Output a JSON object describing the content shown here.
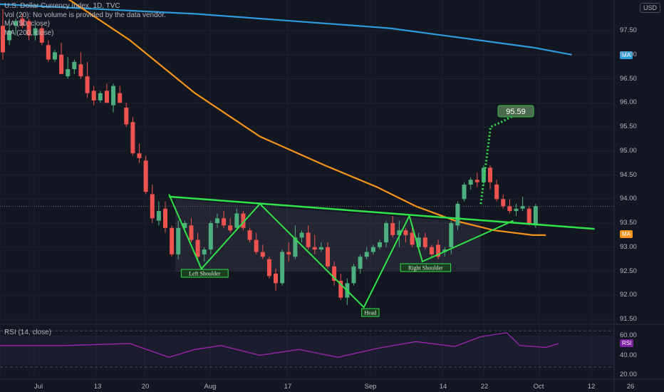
{
  "legend": {
    "title": "U.S. Dollar Currency Index, 1D, TVC",
    "vol": "Vol (20): No volume is provided by the data vendor.",
    "ma50": "MA (50, close)",
    "ma200": "MA (200, close)"
  },
  "currency": "USD",
  "rsi_label": "RSI (14, close)",
  "badges": {
    "ma200": "MA",
    "ma50": "MA",
    "rsi": "RSI",
    "target": "95.59"
  },
  "annotations": {
    "left_shoulder": "Left Shoulder",
    "head": "Head",
    "right_shoulder": "Right Shoulder"
  },
  "price_ticks": [
    "97.50",
    "97.00",
    "96.50",
    "96.00",
    "95.50",
    "95.00",
    "94.50",
    "94.00",
    "93.50",
    "93.00",
    "92.50",
    "92.00",
    "91.50"
  ],
  "rsi_ticks": [
    "60.00",
    "40.00",
    "20.00"
  ],
  "x_ticks": [
    "Jul",
    "13",
    "20",
    "Aug",
    "17",
    "Sep",
    "14",
    "22",
    "Oct",
    "12",
    "26"
  ],
  "colors": {
    "up": "#4caf7d",
    "down": "#ef5350",
    "ma50": "#f7931a",
    "ma200": "#2d9cdb",
    "pattern": "#31e34a",
    "rsi": "#9c27b0"
  },
  "chart_data": {
    "type": "candlestick",
    "symbol": "DXY",
    "candles": [
      {
        "d": "Jun 29",
        "o": 97.6,
        "h": 97.95,
        "l": 96.9,
        "c": 97.05
      },
      {
        "d": "Jun 30",
        "o": 97.3,
        "h": 97.75,
        "l": 97.2,
        "c": 97.5
      },
      {
        "d": "Jul 1",
        "o": 97.6,
        "h": 97.75,
        "l": 97.4,
        "c": 97.7
      },
      {
        "d": "Jul 2",
        "o": 97.75,
        "h": 97.85,
        "l": 97.55,
        "c": 97.6
      },
      {
        "d": "Jul 6",
        "o": 97.7,
        "h": 97.75,
        "l": 97.3,
        "c": 97.4
      },
      {
        "d": "Jul 7",
        "o": 97.4,
        "h": 97.6,
        "l": 97.3,
        "c": 97.55
      },
      {
        "d": "Jul 8",
        "o": 97.55,
        "h": 97.6,
        "l": 97.2,
        "c": 97.25
      },
      {
        "d": "Jul 9",
        "o": 97.2,
        "h": 97.3,
        "l": 96.85,
        "c": 96.9
      },
      {
        "d": "Jul 10",
        "o": 96.9,
        "h": 97.1,
        "l": 96.85,
        "c": 97.05
      },
      {
        "d": "Jul 13",
        "o": 97.0,
        "h": 97.25,
        "l": 96.6,
        "c": 96.6
      },
      {
        "d": "Jul 14",
        "o": 96.55,
        "h": 96.95,
        "l": 96.5,
        "c": 96.7
      },
      {
        "d": "Jul 15",
        "o": 96.7,
        "h": 96.9,
        "l": 96.6,
        "c": 96.85
      },
      {
        "d": "Jul 16",
        "o": 96.8,
        "h": 97.05,
        "l": 96.5,
        "c": 96.55
      },
      {
        "d": "Jul 17",
        "o": 96.55,
        "h": 96.85,
        "l": 96.1,
        "c": 96.2
      },
      {
        "d": "Jul 20",
        "o": 96.25,
        "h": 96.35,
        "l": 95.95,
        "c": 96.05
      },
      {
        "d": "Jul 21",
        "o": 96.05,
        "h": 96.25,
        "l": 96.0,
        "c": 96.2
      },
      {
        "d": "Jul 22",
        "o": 96.25,
        "h": 96.4,
        "l": 96.0,
        "c": 96.0
      },
      {
        "d": "Jul 23",
        "o": 95.95,
        "h": 96.4,
        "l": 95.8,
        "c": 96.35
      },
      {
        "d": "Jul 24",
        "o": 96.2,
        "h": 96.35,
        "l": 96.0,
        "c": 96.0
      },
      {
        "d": "Jul 27",
        "o": 95.9,
        "h": 96.0,
        "l": 95.5,
        "c": 95.55
      },
      {
        "d": "Jul 28",
        "o": 95.6,
        "h": 95.7,
        "l": 94.9,
        "c": 94.95
      },
      {
        "d": "Jul 29",
        "o": 94.95,
        "h": 95.15,
        "l": 94.75,
        "c": 94.85
      },
      {
        "d": "Jul 30",
        "o": 94.8,
        "h": 94.9,
        "l": 94.1,
        "c": 94.15
      },
      {
        "d": "Jul 31",
        "o": 94.1,
        "h": 94.3,
        "l": 93.5,
        "c": 93.6
      },
      {
        "d": "Aug 3",
        "o": 93.55,
        "h": 93.95,
        "l": 93.45,
        "c": 93.75
      },
      {
        "d": "Aug 4",
        "o": 93.8,
        "h": 93.95,
        "l": 93.3,
        "c": 93.4
      },
      {
        "d": "Aug 5",
        "o": 93.4,
        "h": 93.45,
        "l": 92.8,
        "c": 92.85
      },
      {
        "d": "Aug 6",
        "o": 92.85,
        "h": 93.55,
        "l": 92.75,
        "c": 93.4
      },
      {
        "d": "Aug 7",
        "o": 93.4,
        "h": 93.55,
        "l": 93.3,
        "c": 93.5
      },
      {
        "d": "Aug 10",
        "o": 93.45,
        "h": 93.6,
        "l": 93.1,
        "c": 93.15
      },
      {
        "d": "Aug 11",
        "o": 93.15,
        "h": 93.3,
        "l": 92.75,
        "c": 92.8
      },
      {
        "d": "Aug 12",
        "o": 92.85,
        "h": 93.0,
        "l": 92.7,
        "c": 92.95
      },
      {
        "d": "Aug 13",
        "o": 92.95,
        "h": 93.55,
        "l": 92.85,
        "c": 93.5
      },
      {
        "d": "Aug 14",
        "o": 93.5,
        "h": 93.7,
        "l": 93.4,
        "c": 93.6
      },
      {
        "d": "Aug 17",
        "o": 93.6,
        "h": 93.75,
        "l": 93.4,
        "c": 93.45
      },
      {
        "d": "Aug 18",
        "o": 93.45,
        "h": 93.6,
        "l": 93.3,
        "c": 93.35
      },
      {
        "d": "Aug 19",
        "o": 93.4,
        "h": 93.8,
        "l": 93.35,
        "c": 93.7
      },
      {
        "d": "Aug 20",
        "o": 93.7,
        "h": 93.75,
        "l": 93.35,
        "c": 93.4
      },
      {
        "d": "Aug 21",
        "o": 93.35,
        "h": 93.4,
        "l": 93.1,
        "c": 93.15
      },
      {
        "d": "Aug 24",
        "o": 93.15,
        "h": 93.3,
        "l": 92.85,
        "c": 92.9
      },
      {
        "d": "Aug 25",
        "o": 92.9,
        "h": 93.05,
        "l": 92.75,
        "c": 92.8
      },
      {
        "d": "Aug 26",
        "o": 92.75,
        "h": 92.8,
        "l": 92.35,
        "c": 92.4
      },
      {
        "d": "Aug 27",
        "o": 92.45,
        "h": 92.55,
        "l": 92.1,
        "c": 92.25
      },
      {
        "d": "Aug 28",
        "o": 92.25,
        "h": 92.95,
        "l": 92.2,
        "c": 92.9
      },
      {
        "d": "Aug 31",
        "o": 92.9,
        "h": 93.1,
        "l": 92.7,
        "c": 92.85
      },
      {
        "d": "Sep 1",
        "o": 92.8,
        "h": 93.45,
        "l": 92.75,
        "c": 93.2
      },
      {
        "d": "Sep 2",
        "o": 93.2,
        "h": 93.35,
        "l": 93.1,
        "c": 93.3
      },
      {
        "d": "Sep 3",
        "o": 93.3,
        "h": 93.45,
        "l": 92.95,
        "c": 93.0
      },
      {
        "d": "Sep 4",
        "o": 93.0,
        "h": 93.25,
        "l": 92.85,
        "c": 92.95
      },
      {
        "d": "Sep 7",
        "o": 92.95,
        "h": 93.1,
        "l": 92.9,
        "c": 93.0
      },
      {
        "d": "Sep 8",
        "o": 93.0,
        "h": 93.1,
        "l": 92.55,
        "c": 92.6
      },
      {
        "d": "Sep 9",
        "o": 92.6,
        "h": 92.7,
        "l": 92.2,
        "c": 92.3
      },
      {
        "d": "Sep 10",
        "o": 92.3,
        "h": 92.45,
        "l": 91.9,
        "c": 91.95
      },
      {
        "d": "Sep 11",
        "o": 91.95,
        "h": 92.35,
        "l": 91.8,
        "c": 92.25
      },
      {
        "d": "Sep 14",
        "o": 92.25,
        "h": 92.65,
        "l": 92.2,
        "c": 92.6
      },
      {
        "d": "Sep 15",
        "o": 92.55,
        "h": 92.85,
        "l": 92.45,
        "c": 92.8
      },
      {
        "d": "Sep 16",
        "o": 92.8,
        "h": 93.0,
        "l": 92.75,
        "c": 92.9
      },
      {
        "d": "Sep 17",
        "o": 92.9,
        "h": 93.05,
        "l": 92.85,
        "c": 93.0
      },
      {
        "d": "Sep 18",
        "o": 93.0,
        "h": 93.15,
        "l": 92.95,
        "c": 93.1
      },
      {
        "d": "Sep 21",
        "o": 93.1,
        "h": 93.55,
        "l": 93.0,
        "c": 93.5
      },
      {
        "d": "Sep 22",
        "o": 93.5,
        "h": 93.65,
        "l": 93.2,
        "c": 93.25
      },
      {
        "d": "Sep 23",
        "o": 93.25,
        "h": 93.55,
        "l": 93.0,
        "c": 93.35
      },
      {
        "d": "Sep 24",
        "o": 93.35,
        "h": 93.4,
        "l": 93.1,
        "c": 93.25
      },
      {
        "d": "Sep 25",
        "o": 93.3,
        "h": 93.4,
        "l": 93.0,
        "c": 93.05
      },
      {
        "d": "Sep 28",
        "o": 93.0,
        "h": 93.3,
        "l": 92.95,
        "c": 93.2
      },
      {
        "d": "Sep 29",
        "o": 93.2,
        "h": 93.3,
        "l": 92.95,
        "c": 93.0
      },
      {
        "d": "Sep 30",
        "o": 93.0,
        "h": 93.05,
        "l": 92.8,
        "c": 92.85
      },
      {
        "d": "Oct 1",
        "o": 93.05,
        "h": 93.15,
        "l": 92.75,
        "c": 92.8
      },
      {
        "d": "Oct 2",
        "o": 92.9,
        "h": 93.0,
        "l": 92.8,
        "c": 92.95
      },
      {
        "d": "Oct 5",
        "o": 93.0,
        "h": 93.55,
        "l": 92.85,
        "c": 93.5
      },
      {
        "d": "Oct 6",
        "o": 93.45,
        "h": 93.95,
        "l": 93.35,
        "c": 93.9
      },
      {
        "d": "Oct 7",
        "o": 94.0,
        "h": 94.35,
        "l": 93.95,
        "c": 94.3
      },
      {
        "d": "Oct 8",
        "o": 94.3,
        "h": 94.45,
        "l": 94.2,
        "c": 94.4
      },
      {
        "d": "Oct 9",
        "o": 94.4,
        "h": 94.55,
        "l": 94.25,
        "c": 94.35
      },
      {
        "d": "Oct 12",
        "o": 94.35,
        "h": 94.7,
        "l": 94.3,
        "c": 94.65
      },
      {
        "d": "Oct 13",
        "o": 94.65,
        "h": 94.7,
        "l": 94.2,
        "c": 94.35
      },
      {
        "d": "Oct 14",
        "o": 94.3,
        "h": 94.4,
        "l": 93.95,
        "c": 94.0
      },
      {
        "d": "Oct 15",
        "o": 94.0,
        "h": 94.1,
        "l": 93.8,
        "c": 93.85
      },
      {
        "d": "Oct 16",
        "o": 93.85,
        "h": 94.0,
        "l": 93.7,
        "c": 93.75
      },
      {
        "d": "Oct 19",
        "o": 93.75,
        "h": 93.9,
        "l": 93.65,
        "c": 93.8
      },
      {
        "d": "Oct 20",
        "o": 93.8,
        "h": 94.05,
        "l": 93.75,
        "c": 93.85
      },
      {
        "d": "Oct 21",
        "o": 93.8,
        "h": 93.85,
        "l": 93.45,
        "c": 93.5
      },
      {
        "d": "Oct 22",
        "o": 93.45,
        "h": 93.9,
        "l": 93.4,
        "c": 93.85
      }
    ],
    "ma200": [
      [
        0,
        98.05
      ],
      [
        30,
        97.85
      ],
      [
        60,
        97.55
      ],
      [
        82,
        97.15
      ],
      [
        88,
        97.0
      ]
    ],
    "ma50": [
      [
        0,
        98.55
      ],
      [
        10,
        98.2
      ],
      [
        20,
        97.3
      ],
      [
        30,
        96.2
      ],
      [
        40,
        95.3
      ],
      [
        50,
        94.7
      ],
      [
        58,
        94.25
      ],
      [
        64,
        93.85
      ],
      [
        70,
        93.55
      ],
      [
        76,
        93.35
      ],
      [
        82,
        93.25
      ],
      [
        84,
        93.25
      ]
    ],
    "rsi": [
      [
        0,
        50
      ],
      [
        10,
        50
      ],
      [
        20,
        52
      ],
      [
        26,
        38
      ],
      [
        30,
        46
      ],
      [
        34,
        50
      ],
      [
        40,
        40
      ],
      [
        46,
        46
      ],
      [
        52,
        38
      ],
      [
        58,
        47
      ],
      [
        64,
        54
      ],
      [
        70,
        49
      ],
      [
        74,
        59
      ],
      [
        78,
        63
      ],
      [
        80,
        50
      ],
      [
        84,
        48
      ],
      [
        86,
        52
      ]
    ],
    "ylim": [
      91.2,
      98.2
    ],
    "rsi_ylim": [
      15,
      70
    ]
  }
}
